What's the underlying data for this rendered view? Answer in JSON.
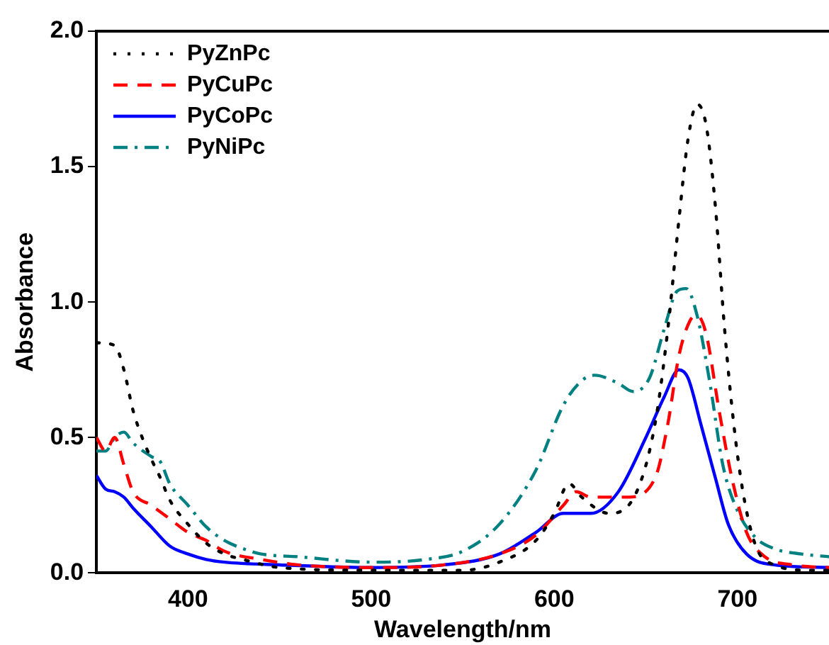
{
  "chart_data": {
    "type": "line",
    "xlabel": "Wavelength/nm",
    "ylabel": "Absorbance",
    "xlim": [
      350,
      750
    ],
    "xticks": [
      400,
      500,
      600,
      700
    ],
    "ylim": [
      0,
      2
    ],
    "yticks": [
      {
        "value": 0,
        "label": "0.0"
      },
      0.5,
      {
        "value": 1,
        "label": "1.0"
      },
      1.5,
      {
        "value": 2,
        "label": "2.0"
      }
    ],
    "grid": false,
    "legend": "top left",
    "marker": "none",
    "series": [
      {
        "name": "PyZnPc",
        "color": "#000000",
        "line_style": "dotted",
        "x": [
          350,
          360,
          365,
          370,
          375,
          380,
          385,
          390,
          400,
          410,
          420,
          430,
          450,
          500,
          550,
          570,
          590,
          600,
          608,
          615,
          630,
          645,
          655,
          662,
          668,
          673,
          678,
          683,
          688,
          693,
          698,
          703,
          710,
          720,
          740,
          750
        ],
        "values": [
          0.85,
          0.84,
          0.75,
          0.6,
          0.5,
          0.42,
          0.35,
          0.27,
          0.18,
          0.11,
          0.07,
          0.05,
          0.02,
          0.01,
          0.01,
          0.04,
          0.12,
          0.22,
          0.33,
          0.28,
          0.22,
          0.3,
          0.55,
          0.9,
          1.3,
          1.6,
          1.73,
          1.65,
          1.35,
          0.9,
          0.55,
          0.3,
          0.1,
          0.03,
          0.01,
          0.01
        ]
      },
      {
        "name": "PyCuPc",
        "color": "#ff0000",
        "line_style": "dashed",
        "x": [
          350,
          355,
          360,
          365,
          370,
          380,
          390,
          400,
          410,
          420,
          440,
          460,
          500,
          540,
          570,
          590,
          605,
          612,
          620,
          640,
          655,
          662,
          668,
          674,
          678,
          683,
          690,
          697,
          705,
          715,
          730,
          750
        ],
        "values": [
          0.5,
          0.45,
          0.5,
          0.4,
          0.3,
          0.25,
          0.2,
          0.15,
          0.12,
          0.08,
          0.05,
          0.03,
          0.02,
          0.03,
          0.07,
          0.14,
          0.25,
          0.3,
          0.28,
          0.28,
          0.35,
          0.55,
          0.8,
          0.93,
          0.95,
          0.88,
          0.6,
          0.35,
          0.15,
          0.06,
          0.03,
          0.02
        ]
      },
      {
        "name": "PyCoPc",
        "color": "#0000ff",
        "line_style": "solid",
        "x": [
          350,
          355,
          360,
          365,
          370,
          380,
          390,
          400,
          410,
          420,
          450,
          500,
          540,
          570,
          590,
          605,
          620,
          635,
          650,
          660,
          668,
          673,
          680,
          688,
          695,
          705,
          720,
          750
        ],
        "values": [
          0.36,
          0.31,
          0.3,
          0.28,
          0.24,
          0.17,
          0.1,
          0.07,
          0.05,
          0.04,
          0.03,
          0.02,
          0.03,
          0.07,
          0.15,
          0.22,
          0.22,
          0.3,
          0.5,
          0.65,
          0.75,
          0.72,
          0.55,
          0.35,
          0.18,
          0.07,
          0.03,
          0.02
        ]
      },
      {
        "name": "PyNiPc",
        "color": "#008080",
        "line_style": "dashdot",
        "x": [
          350,
          355,
          360,
          365,
          370,
          380,
          385,
          390,
          400,
          410,
          420,
          430,
          440,
          460,
          500,
          530,
          550,
          570,
          590,
          605,
          615,
          622,
          635,
          643,
          652,
          660,
          667,
          672,
          678,
          685,
          692,
          700,
          710,
          720,
          735,
          750
        ],
        "values": [
          0.45,
          0.45,
          0.5,
          0.52,
          0.48,
          0.43,
          0.41,
          0.33,
          0.25,
          0.17,
          0.12,
          0.09,
          0.07,
          0.06,
          0.04,
          0.05,
          0.08,
          0.18,
          0.38,
          0.62,
          0.71,
          0.73,
          0.7,
          0.67,
          0.72,
          0.9,
          1.04,
          1.05,
          0.95,
          0.7,
          0.4,
          0.23,
          0.13,
          0.09,
          0.07,
          0.06
        ]
      }
    ]
  }
}
